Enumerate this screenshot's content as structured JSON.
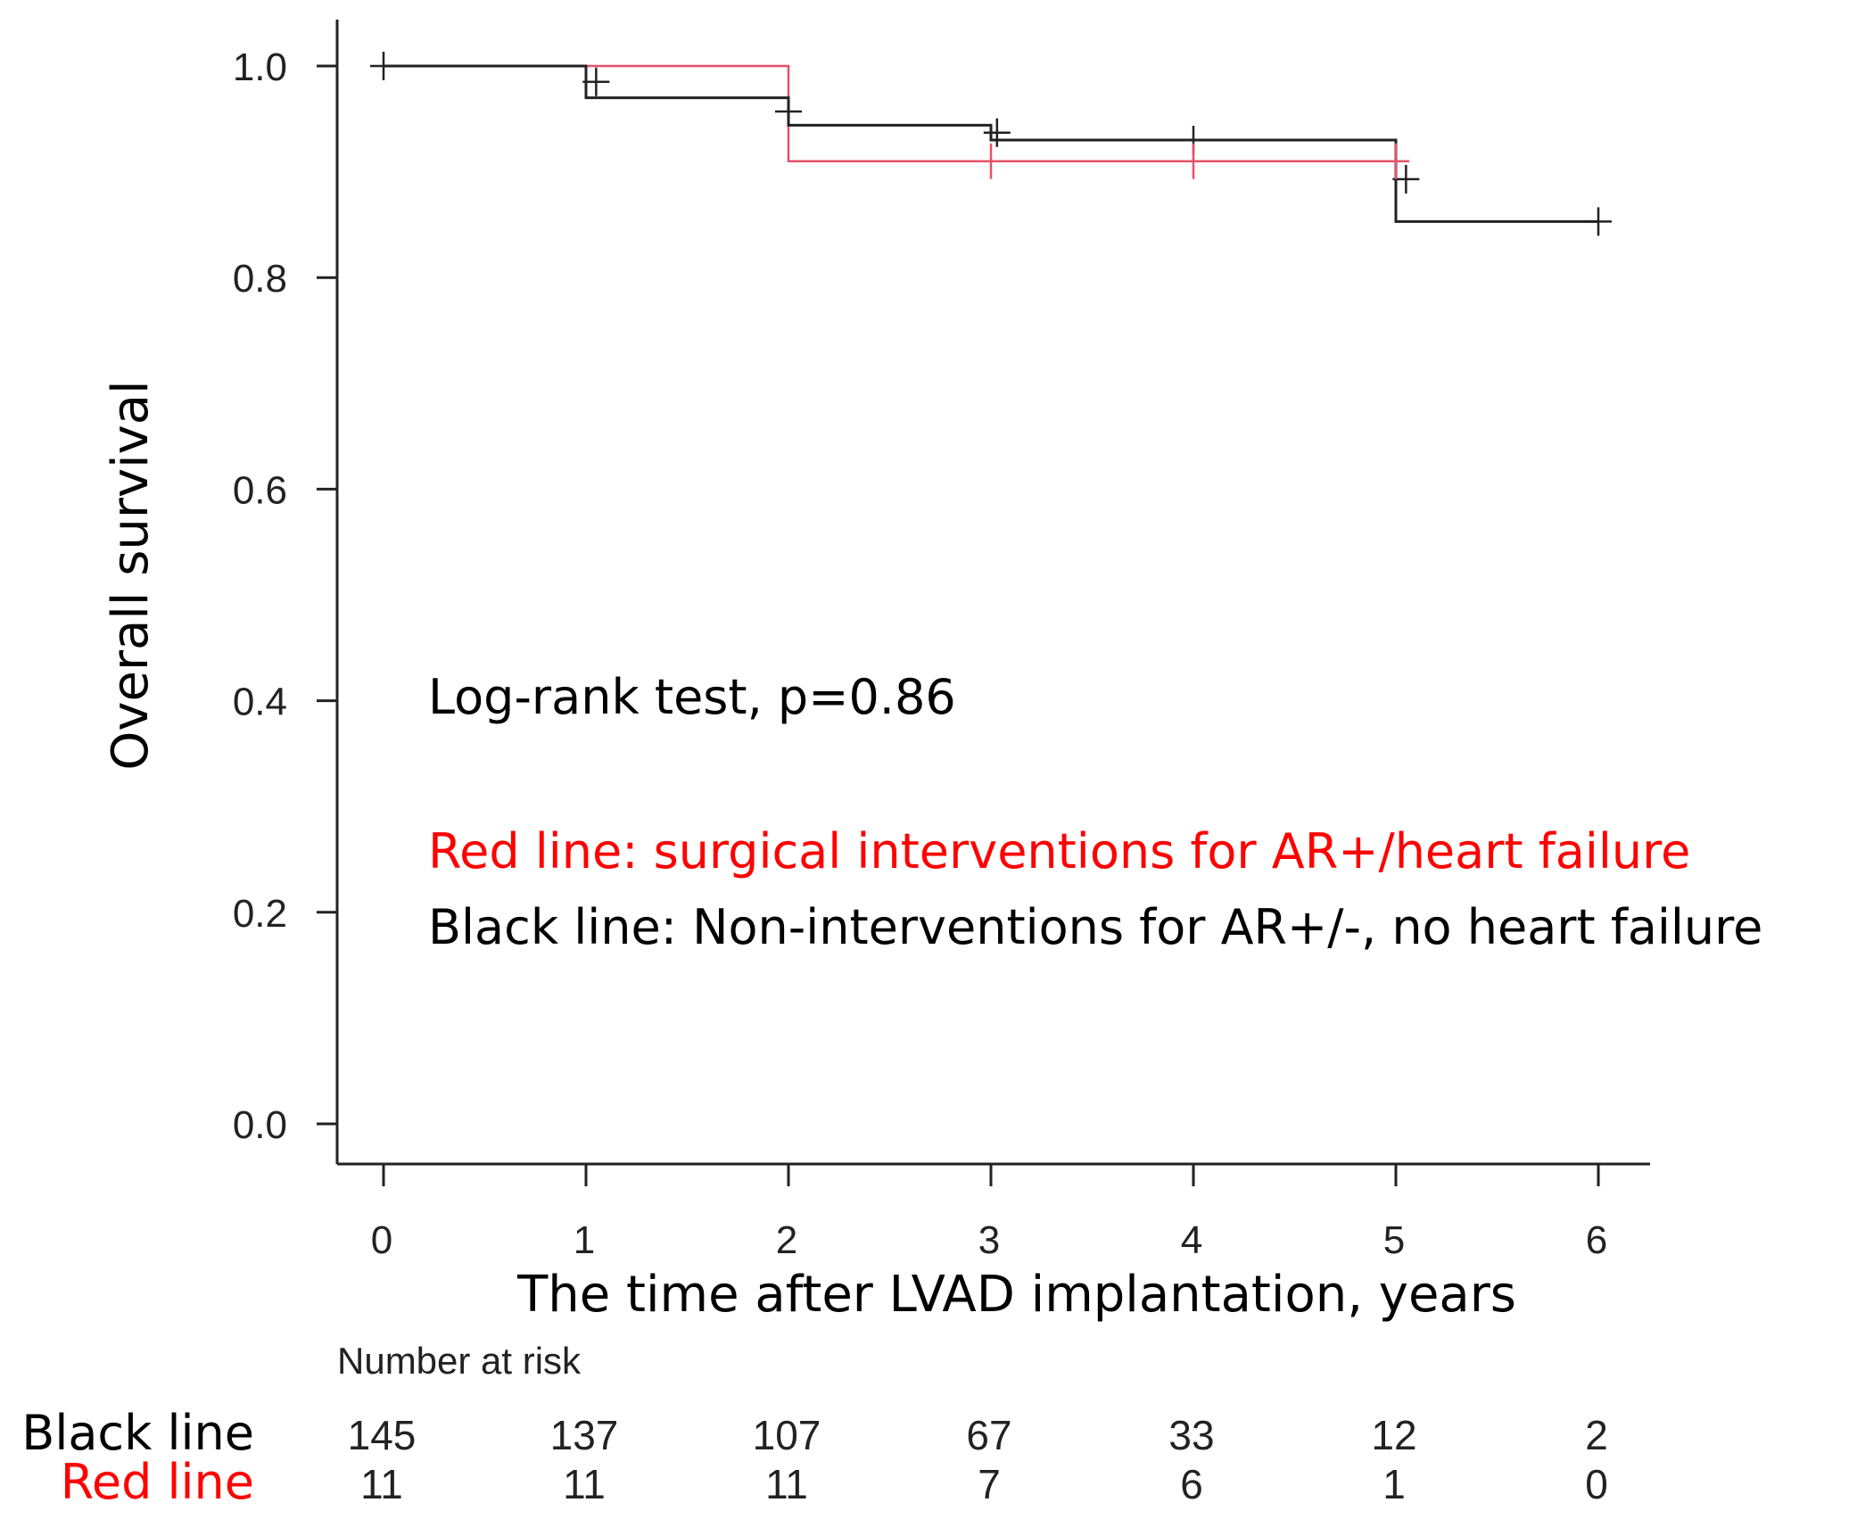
{
  "chart_data": {
    "type": "line",
    "subtype": "kaplan-meier",
    "xlabel": "The time after LVAD implantation, years",
    "ylabel": "Overall survival",
    "xlim": [
      0,
      6
    ],
    "ylim": [
      0,
      1.0
    ],
    "x_ticks": [
      "0",
      "1",
      "2",
      "3",
      "4",
      "5",
      "6"
    ],
    "y_ticks": [
      "0.0",
      "0.2",
      "0.4",
      "0.6",
      "0.8",
      "1.0"
    ],
    "grid": false,
    "colors": {
      "black": "#222222",
      "red": "#e8506a",
      "red_text": "#ff0000"
    },
    "series": [
      {
        "color": "#222222",
        "steps": [
          [
            0,
            1.0
          ],
          [
            1,
            0.97
          ],
          [
            2,
            0.944
          ],
          [
            3,
            0.93
          ],
          [
            5,
            0.853
          ],
          [
            6,
            0.853
          ]
        ],
        "censor": [
          [
            0,
            1.0
          ],
          [
            1.05,
            0.985
          ],
          [
            2.0,
            0.957
          ],
          [
            3.03,
            0.937
          ],
          [
            4.0,
            0.93
          ],
          [
            5.05,
            0.893
          ],
          [
            6.0,
            0.853
          ]
        ]
      },
      {
        "color": "#e8506a",
        "steps": [
          [
            0,
            1.0
          ],
          [
            2,
            0.91
          ],
          [
            5,
            0.91
          ]
        ],
        "censor": [
          [
            3.0,
            0.91
          ],
          [
            4.0,
            0.91
          ],
          [
            5.0,
            0.91
          ]
        ]
      }
    ],
    "annotations": {
      "test": "Log-rank test, p=0.86",
      "red_legend": "Red line: surgical interventions for AR+/heart failure",
      "black_legend": "Black line: Non-interventions for AR+/-, no heart failure"
    },
    "risk_table": {
      "header": "Number at risk",
      "rows": [
        {
          "label": "Black line",
          "color": "#000000",
          "values": [
            "145",
            "137",
            "107",
            "67",
            "33",
            "12",
            "2"
          ]
        },
        {
          "label": "Red line",
          "color": "#ff0000",
          "values": [
            "11",
            "11",
            "11",
            "7",
            "6",
            "1",
            "0"
          ]
        }
      ]
    }
  }
}
